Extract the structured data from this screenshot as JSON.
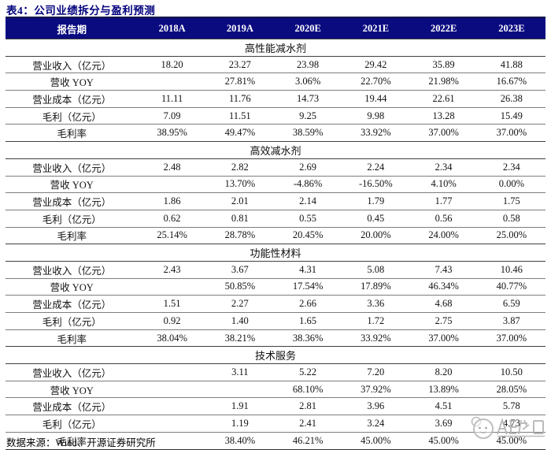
{
  "title": "表4：公司业绩拆分与盈利预测",
  "header": {
    "period_label": "报告期",
    "columns": [
      "2018A",
      "2019A",
      "2020E",
      "2021E",
      "2022E",
      "2023E"
    ]
  },
  "sections": [
    {
      "name": "高性能减水剂",
      "rows": [
        {
          "label": "营业收入（亿元）",
          "values": [
            "18.20",
            "23.27",
            "23.98",
            "29.42",
            "35.89",
            "41.88"
          ]
        },
        {
          "label": "营收 YOY",
          "values": [
            "",
            "27.81%",
            "3.06%",
            "22.70%",
            "21.98%",
            "16.67%"
          ]
        },
        {
          "label": "营业成本（亿元）",
          "values": [
            "11.11",
            "11.76",
            "14.73",
            "19.44",
            "22.61",
            "26.38"
          ]
        },
        {
          "label": "毛利（亿元）",
          "values": [
            "7.09",
            "11.51",
            "9.25",
            "9.98",
            "13.28",
            "15.49"
          ]
        },
        {
          "label": "毛利率",
          "values": [
            "38.95%",
            "49.47%",
            "38.59%",
            "33.92%",
            "37.00%",
            "37.00%"
          ]
        }
      ]
    },
    {
      "name": "高效减水剂",
      "rows": [
        {
          "label": "营业收入（亿元）",
          "values": [
            "2.48",
            "2.82",
            "2.69",
            "2.24",
            "2.34",
            "2.34"
          ]
        },
        {
          "label": "营收 YOY",
          "values": [
            "",
            "13.70%",
            "-4.86%",
            "-16.50%",
            "4.10%",
            "0.00%"
          ]
        },
        {
          "label": "营业成本（亿元）",
          "values": [
            "1.86",
            "2.01",
            "2.14",
            "1.79",
            "1.77",
            "1.75"
          ]
        },
        {
          "label": "毛利（亿元）",
          "values": [
            "0.62",
            "0.81",
            "0.55",
            "0.45",
            "0.56",
            "0.58"
          ]
        },
        {
          "label": "毛利率",
          "values": [
            "25.14%",
            "28.78%",
            "20.45%",
            "20.00%",
            "24.00%",
            "25.00%"
          ]
        }
      ]
    },
    {
      "name": "功能性材料",
      "rows": [
        {
          "label": "营业收入（亿元）",
          "values": [
            "2.43",
            "3.67",
            "4.31",
            "5.08",
            "7.43",
            "10.46"
          ]
        },
        {
          "label": "营收 YOY",
          "values": [
            "",
            "50.85%",
            "17.54%",
            "17.89%",
            "46.34%",
            "40.77%"
          ]
        },
        {
          "label": "营业成本（亿元）",
          "values": [
            "1.51",
            "2.27",
            "2.66",
            "3.36",
            "4.68",
            "6.59"
          ]
        },
        {
          "label": "毛利（亿元）",
          "values": [
            "0.92",
            "1.40",
            "1.65",
            "1.72",
            "2.75",
            "3.87"
          ]
        },
        {
          "label": "毛利率",
          "values": [
            "38.04%",
            "38.21%",
            "38.36%",
            "33.92%",
            "37.00%",
            "37.00%"
          ]
        }
      ]
    },
    {
      "name": "技术服务",
      "rows": [
        {
          "label": "营业收入（亿元）",
          "values": [
            "",
            "3.11",
            "5.22",
            "7.20",
            "8.20",
            "10.50"
          ]
        },
        {
          "label": "营收 YOY",
          "values": [
            "",
            "",
            "68.10%",
            "37.92%",
            "13.89%",
            "28.05%"
          ]
        },
        {
          "label": "营业成本（亿元）",
          "values": [
            "",
            "1.91",
            "2.81",
            "3.96",
            "4.51",
            "5.78"
          ]
        },
        {
          "label": "毛利（亿元）",
          "values": [
            "",
            "1.19",
            "2.41",
            "3.24",
            "3.69",
            "4.73"
          ]
        },
        {
          "label": "毛利率",
          "values": [
            "",
            "38.40%",
            "46.21%",
            "45.00%",
            "45.00%",
            "45.00%"
          ]
        }
      ]
    }
  ],
  "source": "数据来源：Wind、开源证券研究所",
  "colors": {
    "header_bg": "#0b0b80",
    "title_text": "#00007d",
    "body_text": "#121212",
    "row_line": "#7d7d7d",
    "watermark_gray": "#b4b4b4"
  }
}
